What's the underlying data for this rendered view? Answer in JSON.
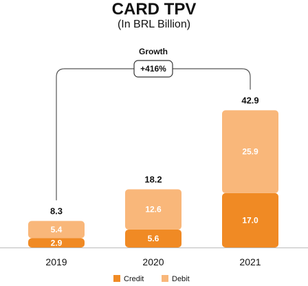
{
  "chart_data": {
    "type": "bar",
    "stacked": true,
    "title": "CARD TPV",
    "subtitle": "(In BRL Billion)",
    "categories": [
      "2019",
      "2020",
      "2021"
    ],
    "series": [
      {
        "name": "Credit",
        "values": [
          2.9,
          5.6,
          17.0
        ],
        "labels": [
          "2.9",
          "5.6",
          "17.0"
        ],
        "color": "#f08a24"
      },
      {
        "name": "Debit",
        "values": [
          5.4,
          12.6,
          25.9
        ],
        "labels": [
          "5.4",
          "12.6",
          "25.9"
        ],
        "color": "#f9b77a"
      }
    ],
    "totals": [
      8.3,
      18.2,
      42.9
    ],
    "total_labels": [
      "8.3",
      "18.2",
      "42.9"
    ],
    "ylim": [
      0,
      46
    ],
    "grid": false,
    "legend_position": "bottom",
    "annotation": {
      "label": "Growth",
      "value": "+416%",
      "from": "2019",
      "to": "2021"
    }
  }
}
